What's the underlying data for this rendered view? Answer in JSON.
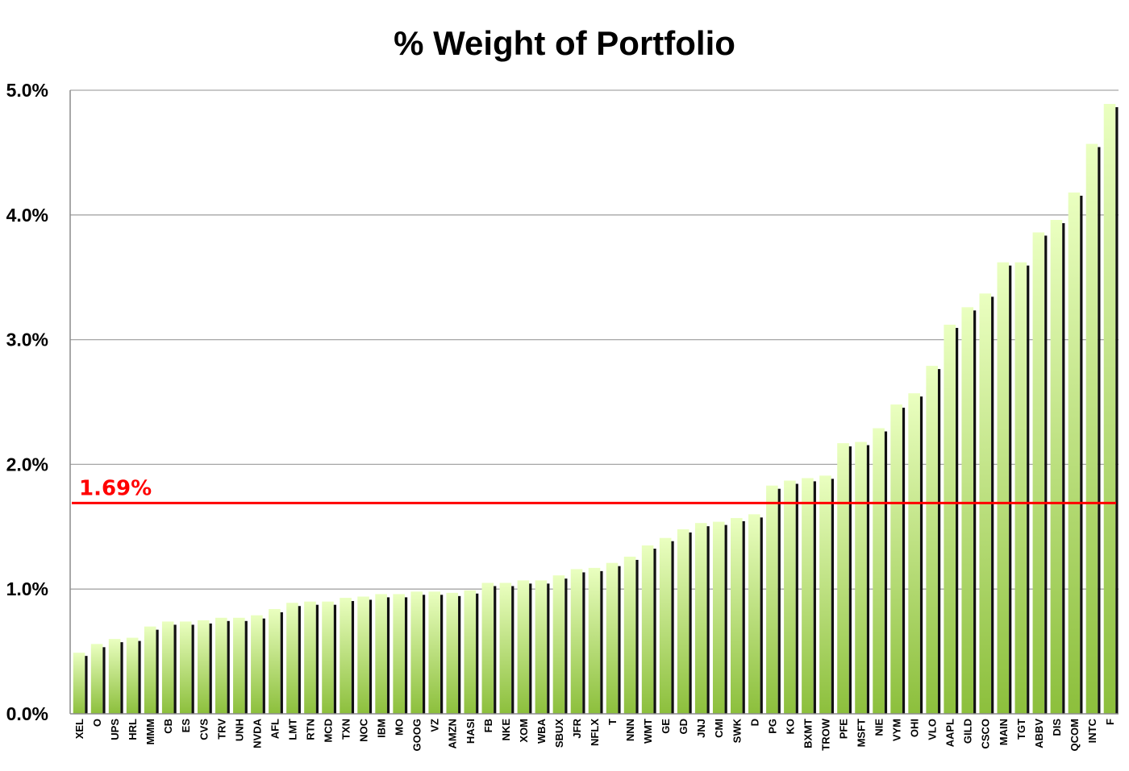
{
  "chart_data": {
    "type": "bar",
    "title": "% Weight of Portfolio",
    "xlabel": "",
    "ylabel": "",
    "ylim": [
      0,
      5.0
    ],
    "y_ticks": [
      "0.0%",
      "1.0%",
      "2.0%",
      "3.0%",
      "4.0%",
      "5.0%"
    ],
    "grid": true,
    "legend": "none",
    "categories": [
      "XEL",
      "O",
      "UPS",
      "HRL",
      "MMM",
      "CB",
      "ES",
      "CVS",
      "TRV",
      "UNH",
      "NVDA",
      "AFL",
      "LMT",
      "RTN",
      "MCD",
      "TXN",
      "NOC",
      "IBM",
      "MO",
      "GOOG",
      "VZ",
      "AMZN",
      "HASI",
      "FB",
      "NKE",
      "XOM",
      "WBA",
      "SBUX",
      "JFR",
      "NFLX",
      "T",
      "NNN",
      "WMT",
      "GE",
      "GD",
      "JNJ",
      "CMI",
      "SWK",
      "D",
      "PG",
      "KO",
      "BXMT",
      "TROW",
      "PFE",
      "MSFT",
      "NIE",
      "VYM",
      "OHI",
      "VLO",
      "AAPL",
      "GILD",
      "CSCO",
      "MAIN",
      "TGT",
      "ABBV",
      "DIS",
      "QCOM",
      "INTC",
      "F"
    ],
    "values": [
      0.49,
      0.56,
      0.6,
      0.61,
      0.7,
      0.74,
      0.74,
      0.75,
      0.77,
      0.77,
      0.79,
      0.84,
      0.89,
      0.9,
      0.9,
      0.93,
      0.94,
      0.96,
      0.96,
      0.98,
      0.98,
      0.97,
      0.99,
      1.05,
      1.05,
      1.07,
      1.07,
      1.11,
      1.16,
      1.17,
      1.21,
      1.26,
      1.35,
      1.41,
      1.48,
      1.53,
      1.54,
      1.57,
      1.6,
      1.83,
      1.87,
      1.89,
      1.91,
      2.17,
      2.18,
      2.29,
      2.48,
      2.57,
      2.79,
      3.12,
      3.26,
      3.37,
      3.62,
      3.62,
      3.86,
      3.96,
      4.18,
      4.57,
      4.89
    ],
    "reference_line": {
      "value": 1.69,
      "label": "1.69%"
    },
    "colors": {
      "bar_top": "#eaffc0",
      "bar_bottom": "#8cbf3c",
      "bar_shadow": "#111111",
      "reference": "#ff0000",
      "grid": "#a6a6a6",
      "axis": "#8c8c8c"
    }
  }
}
